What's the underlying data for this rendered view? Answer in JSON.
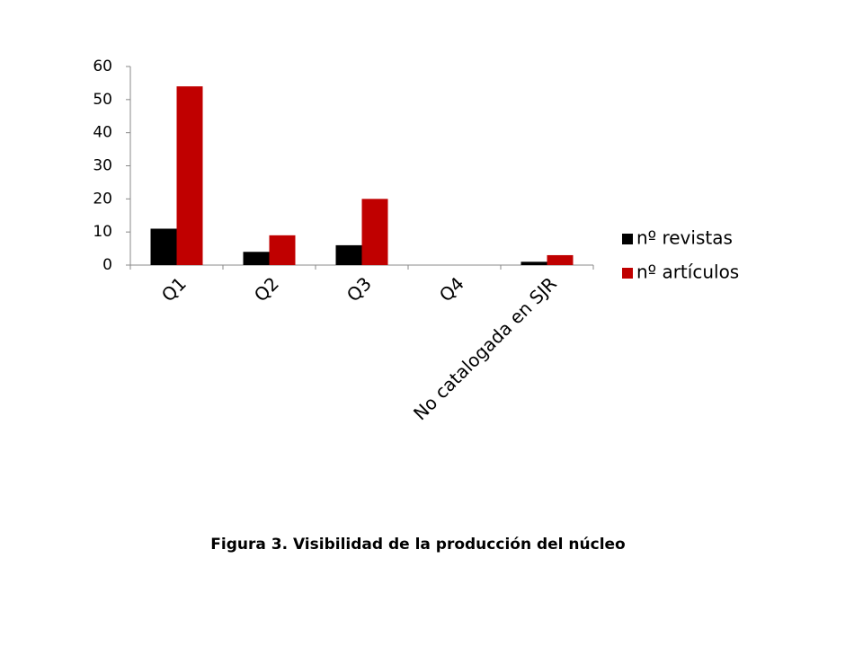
{
  "chart_data": {
    "type": "bar",
    "categories": [
      "Q1",
      "Q2",
      "Q3",
      "Q4",
      "No catalogada en SJR"
    ],
    "series": [
      {
        "name": "nº revistas",
        "color": "#000000",
        "values": [
          11,
          4,
          6,
          0,
          1
        ]
      },
      {
        "name": "nº artículos",
        "color": "#c00000",
        "values": [
          54,
          9,
          20,
          0,
          3
        ]
      }
    ],
    "ylim": [
      0,
      60
    ],
    "yticks": [
      0,
      10,
      20,
      30,
      40,
      50,
      60
    ],
    "legend": "right",
    "caption": "Figura 3. Visibilidad de la producción del núcleo"
  }
}
